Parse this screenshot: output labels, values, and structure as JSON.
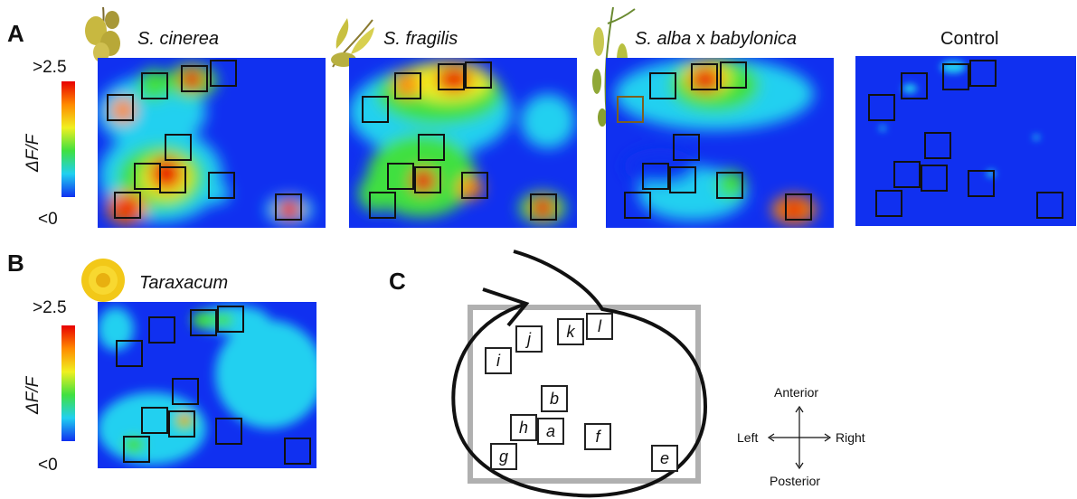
{
  "panels": {
    "a_letter": "A",
    "b_letter": "B",
    "c_letter": "C"
  },
  "titles": {
    "cinerea_it": "S. cinerea",
    "fragilis_it": "S. fragilis",
    "alba_it": "S. alba",
    "alba_x": " x ",
    "babylonica_it": "babylonica",
    "control": "Control",
    "taraxacum_it": "Taraxacum"
  },
  "scale": {
    "top": ">2.5",
    "bottom": "<0",
    "label": "ΔF/F"
  },
  "map_labels": [
    "i",
    "j",
    "k",
    "l",
    "b",
    "h",
    "a",
    "f",
    "g",
    "e"
  ],
  "orientation": {
    "anterior": "Anterior",
    "posterior": "Posterior",
    "left": "Left",
    "right": "Right"
  },
  "colors": {
    "blue": "#1030f0",
    "cyan": "#20d0f0",
    "green": "#40e040",
    "yellow": "#f0f020",
    "orange": "#ff8a00",
    "red": "#e80000"
  }
}
